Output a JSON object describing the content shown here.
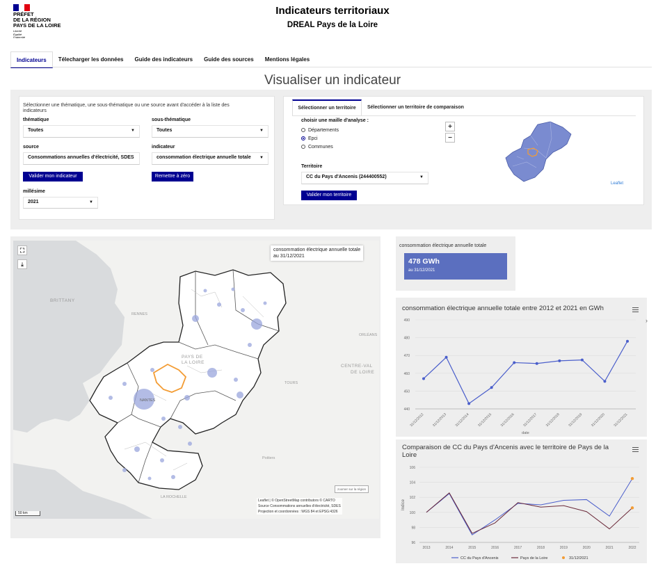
{
  "logo": {
    "line1": "PRÉFET",
    "line2": "DE LA RÉGION",
    "line3": "PAYS DE LA LOIRE",
    "motto1": "Liberté",
    "motto2": "Égalité",
    "motto3": "Fraternité"
  },
  "header": {
    "title": "Indicateurs territoriaux",
    "subtitle": "DREAL Pays de la Loire"
  },
  "nav": {
    "tabs": [
      {
        "label": "Indicateurs"
      },
      {
        "label": "Télecharger les données"
      },
      {
        "label": "Guide des indicateurs"
      },
      {
        "label": "Guide des sources"
      },
      {
        "label": "Mentions légales"
      }
    ]
  },
  "section_title": "Visualiser un indicateur",
  "selector": {
    "intro": "Sélectionner une thématique, une sous-thématique ou une source avant d'accéder à la liste des indicateurs",
    "thematique_label": "thématique",
    "thematique_value": "Toutes",
    "sous_thematique_label": "sous-thématique",
    "sous_thematique_value": "Toutes",
    "source_label": "source",
    "source_value": "Consommations annuelles d'électricité, SDES",
    "indicateur_label": "indicateur",
    "indicateur_value": "consommation électrique annuelle totale",
    "valider_label": "Valider mon indicateur",
    "reset_label": "Remettre à zéro",
    "millesime_label": "millésime",
    "millesime_value": "2021"
  },
  "territory": {
    "tab1": "Sélectionner un territoire",
    "tab2": "Sélectionner un territoire de comparaison",
    "maille_label": "choisir une maille d'analyse :",
    "options": [
      "Départements",
      "Epci",
      "Communes"
    ],
    "territoire_label": "Territoire",
    "territoire_value": "CC du Pays d'Ancenis (244400552)",
    "valider_label": "Valider mon territoire",
    "zoom_in": "+",
    "zoom_out": "−",
    "leaflet": "Leaflet"
  },
  "main_map": {
    "legend_title": "consommation électrique annuelle totale",
    "legend_date": "au 31/12/2021",
    "labels": {
      "brittany": "BRITTANY",
      "rennes": "RENNES",
      "orleans": "ORLÉANS",
      "centre1": "CENTRE-VAL",
      "centre2": "DE LOIRE",
      "tours": "TOURS",
      "pdl1": "PAYS DE",
      "pdl2": "LA LOIRE",
      "nantes": "NANTES",
      "poitiers": "Poitiers",
      "larochelle": "LA ROCHELLE"
    },
    "zoom_region": "zoomer sur la région",
    "scale": "50 km",
    "attribution1": "Leaflet | © OpenStreetMap contributors © CARTO",
    "attribution2": "Source Consommations annuelles d'électricité, SDES",
    "attribution3": "Projection et coordonnées : WGS 84 et EPSG:4326"
  },
  "value_card": {
    "title": "consommation électrique annuelle totale",
    "value": "478 GWh",
    "date": "au 31/12/2021"
  },
  "colors": {
    "accent": "#000091",
    "card": "#5b6fbf",
    "line": "#4a5ecb",
    "compare": "#6b2a3a",
    "highlight": "#f39c34",
    "territory_outline": "#f39c34"
  },
  "chart_data": [
    {
      "type": "line",
      "title": "consommation électrique annuelle totale entre 2012 et 2021 en GWh",
      "xlabel": "date",
      "ylabel": "",
      "x": [
        "31/12/2012",
        "31/12/2013",
        "31/12/2014",
        "31/12/2015",
        "31/12/2016",
        "31/12/2017",
        "31/12/2018",
        "31/12/2019",
        "31/12/2020",
        "31/12/2021"
      ],
      "yticks": [
        440,
        450,
        460,
        470,
        480,
        490
      ],
      "ylim": [
        440,
        490
      ],
      "series": [
        {
          "values": [
            457,
            469,
            443,
            452,
            466,
            465.5,
            467,
            467.5,
            455.5,
            478
          ]
        }
      ]
    },
    {
      "type": "line",
      "title": "Comparaison de CC du Pays d'Ancenis avec le territoire de Pays de la Loire",
      "xlabel": "",
      "ylabel": "Indice",
      "x": [
        "2013",
        "2014",
        "2015",
        "2016",
        "2017",
        "2018",
        "2019",
        "2020",
        "2021",
        "2022"
      ],
      "yticks": [
        96,
        98,
        100,
        102,
        104,
        106
      ],
      "ylim": [
        96,
        106
      ],
      "legend": [
        "CC du Pays d'Ancenis",
        "Pays de la Loire",
        "31/12/2021"
      ],
      "series": [
        {
          "name": "CC du Pays d'Ancenis",
          "values": [
            100,
            102.5,
            97,
            99,
            101.2,
            101,
            101.6,
            101.7,
            99.5,
            104.5
          ]
        },
        {
          "name": "Pays de la Loire",
          "values": [
            100,
            102.6,
            97.2,
            98.6,
            101.3,
            100.7,
            100.9,
            100.1,
            97.8,
            100.6
          ]
        }
      ]
    }
  ]
}
